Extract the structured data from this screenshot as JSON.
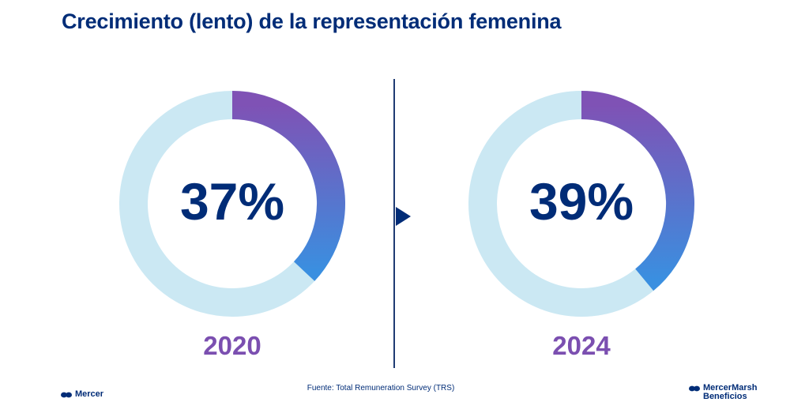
{
  "title": "Crecimiento (lento) de la representación femenina",
  "chart_data": [
    {
      "type": "donut",
      "value_percent": 37,
      "label": "37%",
      "year": "2020",
      "colors": {
        "track": "#cbe8f3",
        "fill_start": "#3a8fe0",
        "fill_end": "#7f52b5"
      }
    },
    {
      "type": "donut",
      "value_percent": 39,
      "label": "39%",
      "year": "2024",
      "colors": {
        "track": "#cbe8f3",
        "fill_start": "#3a8fe0",
        "fill_end": "#7f52b5"
      }
    }
  ],
  "source": "Fuente: Total Remuneration Survey (TRS)",
  "footer": {
    "logo_left": "Mercer",
    "logo_right_line1": "MercerMarsh",
    "logo_right_line2": "Beneficios"
  },
  "colors": {
    "title": "#002c77",
    "year": "#7b4fb0",
    "divider": "#1f3b73"
  },
  "icons": {
    "logo_mark": "mercer-logo-icon",
    "arrow": "play-arrow-icon"
  }
}
